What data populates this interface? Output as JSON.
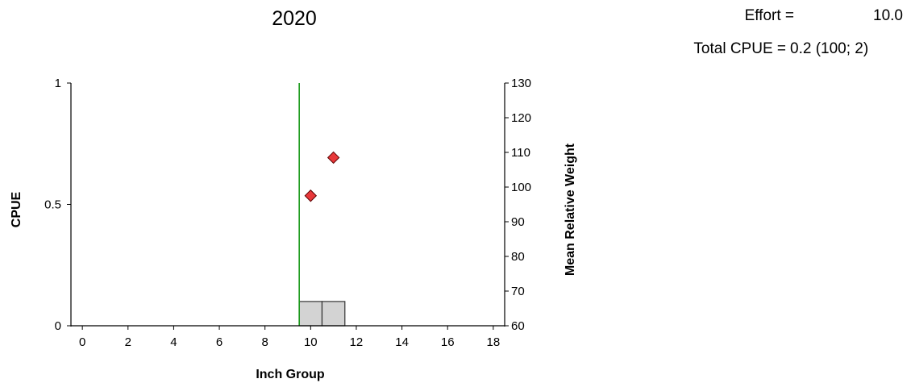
{
  "chart_data": {
    "type": "bar",
    "title": "2020",
    "stats": {
      "effort_label": "Effort =",
      "effort_value": "10.0",
      "cpue_label": "Total CPUE =",
      "cpue_value": "0.2 (100; 2)"
    },
    "xlabel": "Inch Group",
    "ylabel": "CPUE",
    "y2label": "Mean Relative Weight",
    "xlim": [
      -0.5,
      18.5
    ],
    "xticks": [
      "0",
      "2",
      "4",
      "6",
      "8",
      "10",
      "12",
      "14",
      "16",
      "18"
    ],
    "ylim": [
      0,
      1
    ],
    "yticks": [
      "0",
      "0.5",
      "1"
    ],
    "y2lim": [
      60,
      130
    ],
    "y2ticks": [
      "60",
      "70",
      "80",
      "90",
      "100",
      "110",
      "120",
      "130"
    ],
    "vertical_line": {
      "x": 9.5,
      "color": "#1a9a1a"
    },
    "bars": {
      "name": "CPUE",
      "color": "#d3d3d3",
      "x": [
        10,
        11
      ],
      "values": [
        0.1,
        0.1
      ]
    },
    "points": {
      "name": "Mean Relative Weight",
      "color": "#e8383a",
      "x": [
        10,
        11
      ],
      "values": [
        97.5,
        108.5
      ]
    },
    "grid": false
  }
}
